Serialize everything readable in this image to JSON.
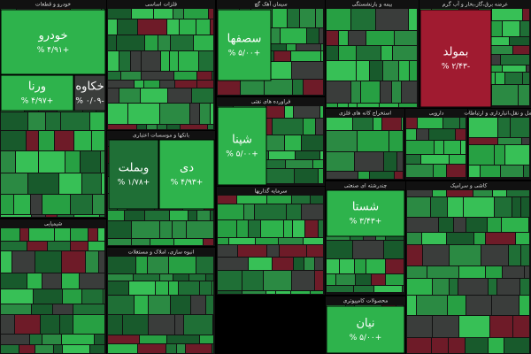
{
  "chart_data": {
    "type": "treemap",
    "sectors": [
      {
        "name": "خودرو و قطعات",
        "tiles": [
          {
            "label": "خودرو",
            "value": 4.91,
            "value_label": "+۴/۹۱ %"
          },
          {
            "label": "ورنا",
            "value": 4.97,
            "value_label": "+۴/۹۷ %"
          },
          {
            "label": "خکاوه",
            "value": -0.09,
            "value_label": "-۰/۰۹ %"
          }
        ]
      },
      {
        "name": "فلزات اساسی",
        "tiles": []
      },
      {
        "name": "سیمان آهک گچ",
        "tiles": [
          {
            "label": "سصفها",
            "value": 5.0,
            "value_label": "+۵/۰۰ %"
          }
        ]
      },
      {
        "name": "بیمه و بازنشستگی",
        "tiles": []
      },
      {
        "name": "عرضه برق،گاز،بخار و آب گرم",
        "tiles": [
          {
            "label": "بمولد",
            "value": -2.43,
            "value_label": "-۲/۴۳ %"
          }
        ]
      },
      {
        "name": "فراورده های نفتی",
        "tiles": [
          {
            "label": "شپنا",
            "value": 5.0,
            "value_label": "+۵/۰۰ %"
          }
        ]
      },
      {
        "name": "بانکها و موسسات اعتباری",
        "tiles": [
          {
            "label": "وبملت",
            "value": 1.78,
            "value_label": "+۱/۷۸ %"
          },
          {
            "label": "دی",
            "value": 4.93,
            "value_label": "+۴/۹۳ %"
          }
        ]
      },
      {
        "name": "استخراج کانه های فلزی",
        "tiles": []
      },
      {
        "name": "دارویی",
        "tiles": []
      },
      {
        "name": "حمل و نقل،انبارداری و ارتباطات",
        "tiles": []
      },
      {
        "name": "شیمیایی",
        "tiles": []
      },
      {
        "name": "سرمایه گذاریها",
        "tiles": []
      },
      {
        "name": "چندرشته ای صنعتی",
        "tiles": [
          {
            "label": "شستا",
            "value": 3.43,
            "value_label": "+۳/۴۳ %"
          }
        ]
      },
      {
        "name": "انبوه سازی، املاک و مستغلات",
        "tiles": []
      },
      {
        "name": "محصولات کامپیوتری",
        "tiles": [
          {
            "label": "نیان",
            "value": 5.0,
            "value_label": "+۵/۰۰ %"
          }
        ]
      },
      {
        "name": "کاشی و سرامیک",
        "tiles": []
      }
    ]
  }
}
